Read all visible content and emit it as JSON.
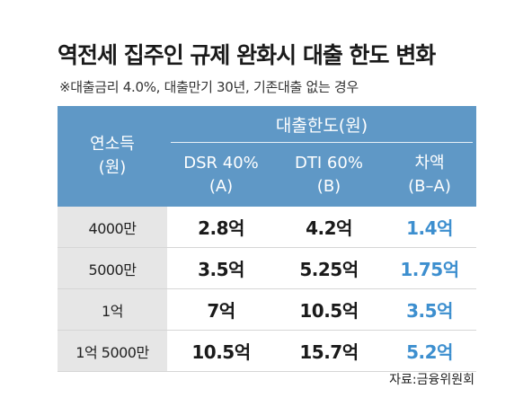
{
  "title": "역전세 집주인 규제 완화시 대출 한도 변화",
  "subtitle": "※대출금리 4.0%, 대출만기 30년, 기존대출 없는 경우",
  "table": {
    "income_header": [
      "연소득",
      "(원)"
    ],
    "limit_header": "대출한도(원)",
    "sub_headers": [
      {
        "line1": "DSR 40%",
        "line2": "(A)"
      },
      {
        "line1": "DTI 60%",
        "line2": "(B)"
      },
      {
        "line1": "차액",
        "line2": "(B–A)"
      }
    ],
    "rows": [
      {
        "income": "4000만",
        "dsr": "2.8억",
        "dti": "4.2억",
        "diff": "1.4억"
      },
      {
        "income": "5000만",
        "dsr": "3.5억",
        "dti": "5.25억",
        "diff": "1.75억"
      },
      {
        "income": "1억",
        "dsr": "7억",
        "dti": "10.5억",
        "diff": "3.5억"
      },
      {
        "income": "1억 5000만",
        "dsr": "10.5억",
        "dti": "15.7억",
        "diff": "5.2억"
      }
    ]
  },
  "source": "자료:금융위원회",
  "colors": {
    "header_bg": "#5f98c6",
    "income_col_bg": "#e6e6e6",
    "diff_text": "#3d8fcf"
  }
}
